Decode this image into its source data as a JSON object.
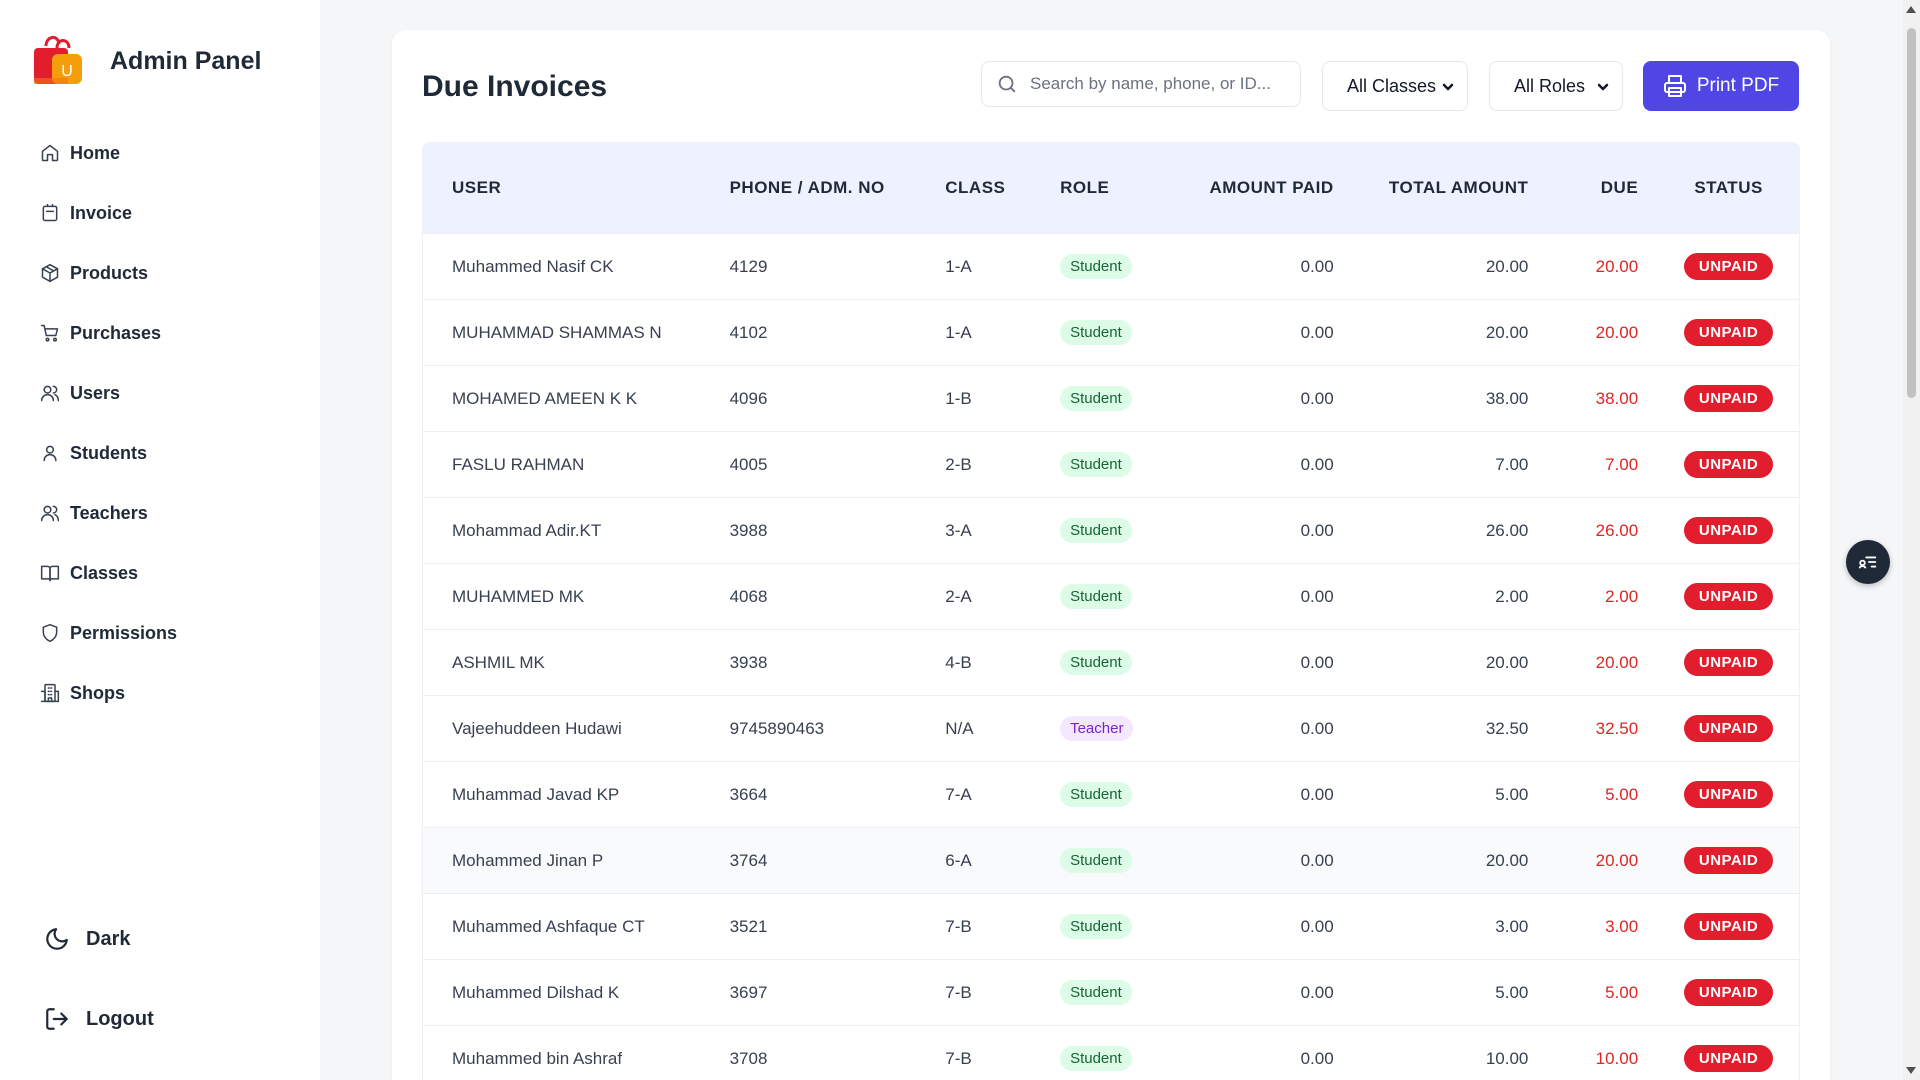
{
  "sidebar": {
    "title": "Admin Panel",
    "items": [
      {
        "label": "Home",
        "icon": "home-icon"
      },
      {
        "label": "Invoice",
        "icon": "invoice-icon"
      },
      {
        "label": "Products",
        "icon": "box-icon"
      },
      {
        "label": "Purchases",
        "icon": "cart-icon"
      },
      {
        "label": "Users",
        "icon": "users-icon"
      },
      {
        "label": "Students",
        "icon": "user-icon"
      },
      {
        "label": "Teachers",
        "icon": "users-icon"
      },
      {
        "label": "Classes",
        "icon": "book-icon"
      },
      {
        "label": "Permissions",
        "icon": "shield-icon"
      },
      {
        "label": "Shops",
        "icon": "building-icon"
      }
    ],
    "theme_label": "Dark",
    "logout_label": "Logout"
  },
  "main": {
    "title": "Due Invoices",
    "search_placeholder": "Search by name, phone, or ID...",
    "class_filter": "All Classes",
    "role_filter": "All Roles",
    "print_label": "Print PDF",
    "columns": {
      "user": "USER",
      "phone": "PHONE / ADM. NO",
      "class": "CLASS",
      "role": "ROLE",
      "paid": "AMOUNT PAID",
      "total": "TOTAL AMOUNT",
      "due": "DUE",
      "status": "STATUS"
    },
    "rows": [
      {
        "user": "Muhammed Nasif CK",
        "phone": "4129",
        "class": "1-A",
        "role": "Student",
        "paid": "0.00",
        "total": "20.00",
        "due": "20.00",
        "status": "UNPAID"
      },
      {
        "user": "MUHAMMAD SHAMMAS N",
        "phone": "4102",
        "class": "1-A",
        "role": "Student",
        "paid": "0.00",
        "total": "20.00",
        "due": "20.00",
        "status": "UNPAID"
      },
      {
        "user": "MOHAMED AMEEN K K",
        "phone": "4096",
        "class": "1-B",
        "role": "Student",
        "paid": "0.00",
        "total": "38.00",
        "due": "38.00",
        "status": "UNPAID"
      },
      {
        "user": "FASLU RAHMAN",
        "phone": "4005",
        "class": "2-B",
        "role": "Student",
        "paid": "0.00",
        "total": "7.00",
        "due": "7.00",
        "status": "UNPAID"
      },
      {
        "user": "Mohammad Adir.KT",
        "phone": "3988",
        "class": "3-A",
        "role": "Student",
        "paid": "0.00",
        "total": "26.00",
        "due": "26.00",
        "status": "UNPAID"
      },
      {
        "user": "MUHAMMED MK",
        "phone": "4068",
        "class": "2-A",
        "role": "Student",
        "paid": "0.00",
        "total": "2.00",
        "due": "2.00",
        "status": "UNPAID"
      },
      {
        "user": "ASHMIL MK",
        "phone": "3938",
        "class": "4-B",
        "role": "Student",
        "paid": "0.00",
        "total": "20.00",
        "due": "20.00",
        "status": "UNPAID"
      },
      {
        "user": "Vajeehuddeen Hudawi",
        "phone": "9745890463",
        "class": "N/A",
        "role": "Teacher",
        "paid": "0.00",
        "total": "32.50",
        "due": "32.50",
        "status": "UNPAID"
      },
      {
        "user": "Muhammad Javad   KP",
        "phone": "3664",
        "class": "7-A",
        "role": "Student",
        "paid": "0.00",
        "total": "5.00",
        "due": "5.00",
        "status": "UNPAID"
      },
      {
        "user": "Mohammed Jinan   P",
        "phone": "3764",
        "class": "6-A",
        "role": "Student",
        "paid": "0.00",
        "total": "20.00",
        "due": "20.00",
        "status": "UNPAID"
      },
      {
        "user": "Muhammed Ashfaque   CT",
        "phone": "3521",
        "class": "7-B",
        "role": "Student",
        "paid": "0.00",
        "total": "3.00",
        "due": "3.00",
        "status": "UNPAID"
      },
      {
        "user": "Muhammed Dilshad   K",
        "phone": "3697",
        "class": "7-B",
        "role": "Student",
        "paid": "0.00",
        "total": "5.00",
        "due": "5.00",
        "status": "UNPAID"
      },
      {
        "user": "Muhammed bin Ashraf",
        "phone": "3708",
        "class": "7-B",
        "role": "Student",
        "paid": "0.00",
        "total": "10.00",
        "due": "10.00",
        "status": "UNPAID"
      }
    ]
  },
  "colors": {
    "accent": "#4f46e5",
    "unpaid": "#e11d2e",
    "due_text": "#dc2626",
    "header_bg": "#eef2ff"
  }
}
